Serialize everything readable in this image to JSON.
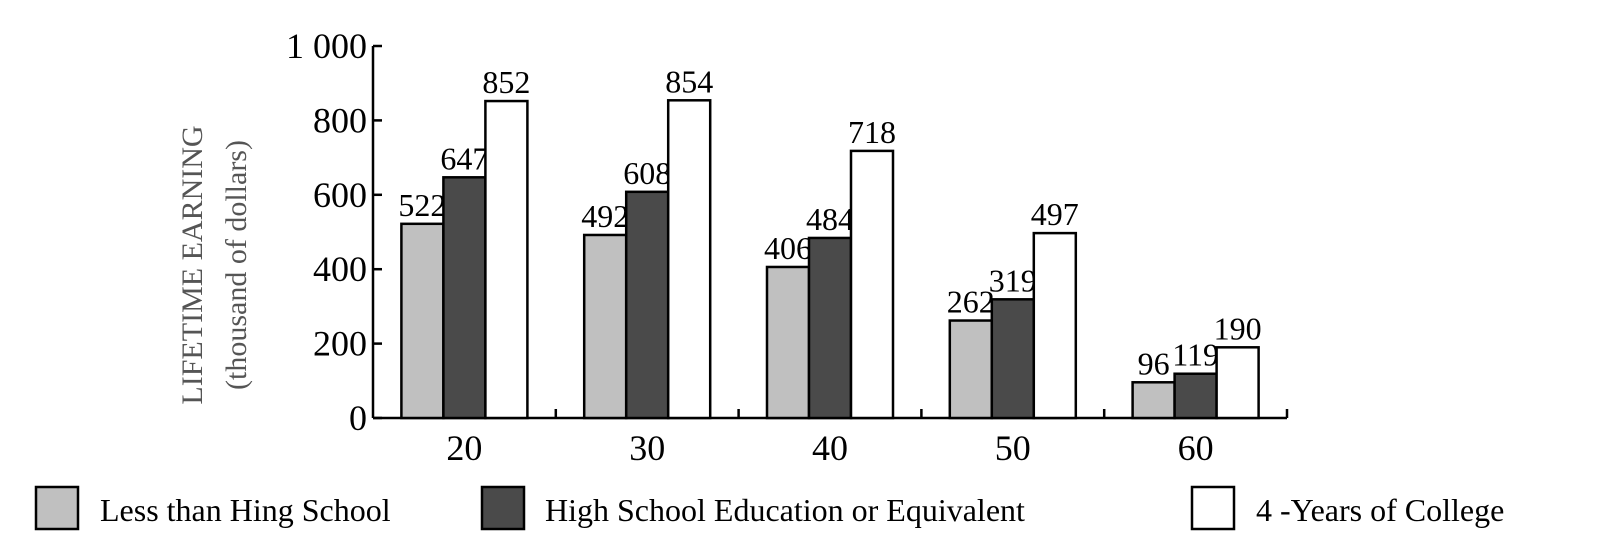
{
  "chart_data": {
    "type": "bar",
    "categories": [
      "20",
      "30",
      "40",
      "50",
      "60"
    ],
    "series": [
      {
        "name": "Less than Hing School",
        "values": [
          522,
          492,
          406,
          262,
          96
        ],
        "color": "#c0c0c0"
      },
      {
        "name": "High School Education or Equivalent",
        "values": [
          647,
          608,
          484,
          319,
          119
        ],
        "color": "#4a4a4a"
      },
      {
        "name": "4 -Years of College",
        "values": [
          852,
          854,
          718,
          497,
          190
        ],
        "color": "#ffffff"
      }
    ],
    "ylabel_line1": "LIFETIME EARNING",
    "ylabel_line2": "(thousand of dollars)",
    "xlabel": "",
    "ylim": [
      0,
      1000
    ],
    "yticks": [
      0,
      200,
      400,
      600,
      800,
      1000
    ],
    "ytick_labels": [
      "0",
      "200",
      "400",
      "600",
      "800",
      "1 000"
    ],
    "grid": false,
    "legend_position": "bottom"
  }
}
